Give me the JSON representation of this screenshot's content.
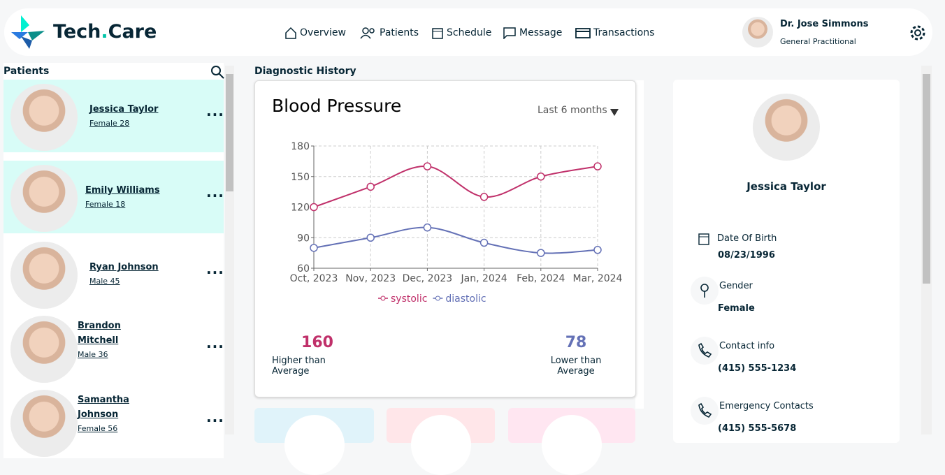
{
  "header": {
    "brand": {
      "first": "Tech",
      "dot": ".",
      "last": "Care"
    },
    "nav": [
      "Overview",
      "Patients",
      "Schedule",
      "Message",
      "Transactions"
    ],
    "user": {
      "name": "Dr. Jose Simmons",
      "role": "General Practitional"
    }
  },
  "patients": {
    "title": "Patients",
    "items": [
      {
        "name": "Jessica Taylor",
        "info": "Female 28"
      },
      {
        "name": "Emily Williams",
        "info": "Female 18"
      },
      {
        "name": "Ryan Johnson",
        "info": "Male 45"
      },
      {
        "name": "Brandon Mitchell",
        "info": "Male 36"
      },
      {
        "name": "Samantha Johnson",
        "info": "Female 56"
      }
    ]
  },
  "diagnostic": {
    "title": "Diagnostic History",
    "range": "Last 6 months",
    "stats": [
      {
        "value": "160",
        "label": "Higher than Average"
      },
      {
        "value": "78",
        "label": "Lower than Average"
      }
    ]
  },
  "chart_data": {
    "type": "line",
    "title": "Blood Pressure",
    "categories": [
      "Oct, 2023",
      "Nov, 2023",
      "Dec, 2023",
      "Jan, 2024",
      "Feb, 2024",
      "Mar, 2024"
    ],
    "series": [
      {
        "name": "systolic",
        "color": "#c0306a",
        "values": [
          120,
          140,
          160,
          130,
          150,
          160
        ]
      },
      {
        "name": "diastolic",
        "color": "#6471b6",
        "values": [
          80,
          90,
          100,
          85,
          75,
          78
        ]
      }
    ],
    "ylim": [
      60,
      180
    ],
    "yticks": [
      60,
      90,
      120,
      150,
      180
    ],
    "grid": true
  },
  "profile": {
    "name": "Jessica Taylor",
    "fields": [
      {
        "label": "Date Of Birth",
        "value": "08/23/1996"
      },
      {
        "label": "Gender",
        "value": "Female"
      },
      {
        "label": "Contact info",
        "value": "(415) 555-1234"
      },
      {
        "label": "Emergency Contacts",
        "value": "(415) 555-5678"
      }
    ]
  }
}
